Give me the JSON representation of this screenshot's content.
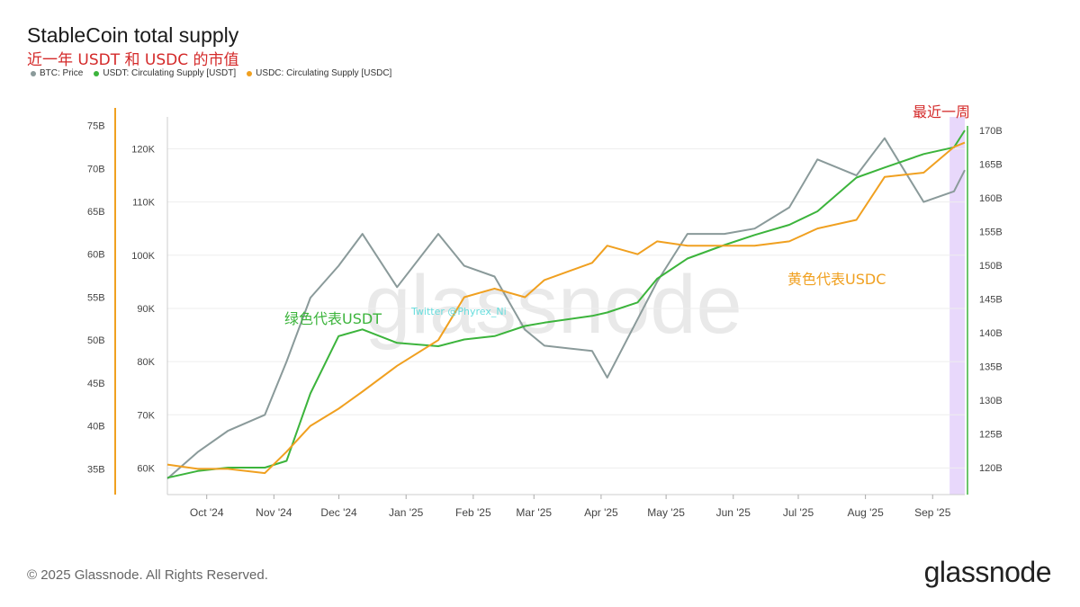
{
  "header": {
    "title": "StableCoin total supply",
    "subtitle": "近一年 USDT 和 USDC 的市值"
  },
  "footer": {
    "copyright": "© 2025 Glassnode. All Rights Reserved.",
    "brand": "glassnode"
  },
  "watermark": {
    "brand": "glassnode",
    "twitter": "Twitter @Phyrex_Ni"
  },
  "colors": {
    "btc": "#8a9a9a",
    "usdt": "#3cb43c",
    "usdc": "#f0a020",
    "highlight": "#e8d8fb",
    "red": "#d42a2a"
  },
  "annotations": {
    "recent_week": "最近一周",
    "usdt_label": "绿色代表USDT",
    "usdc_label": "黄色代表USDC"
  },
  "chart_data": {
    "type": "line",
    "title": "StableCoin total supply",
    "x": [
      "2024-09-17",
      "2024-10-01",
      "2024-10-15",
      "2024-11-01",
      "2024-11-11",
      "2024-11-22",
      "2024-12-05",
      "2024-12-16",
      "2025-01-01",
      "2025-01-20",
      "2025-02-01",
      "2025-02-15",
      "2025-03-01",
      "2025-03-10",
      "2025-04-01",
      "2025-04-08",
      "2025-04-22",
      "2025-05-01",
      "2025-05-15",
      "2025-06-01",
      "2025-06-15",
      "2025-07-01",
      "2025-07-14",
      "2025-08-01",
      "2025-08-14",
      "2025-09-01",
      "2025-09-15",
      "2025-09-20"
    ],
    "x_ticks": [
      "Oct '24",
      "Nov '24",
      "Dec '24",
      "Jan '25",
      "Feb '25",
      "Mar '25",
      "Apr '25",
      "May '25",
      "Jun '25",
      "Jul '25",
      "Aug '25",
      "Sep '25"
    ],
    "axes": {
      "btc": {
        "side": "left-inner",
        "ticks": [
          "60K",
          "70K",
          "80K",
          "90K",
          "100K",
          "110K",
          "120K"
        ],
        "range": [
          55000,
          126000
        ]
      },
      "usdc": {
        "side": "left-outer",
        "ticks": [
          "35B",
          "40B",
          "45B",
          "50B",
          "55B",
          "60B",
          "65B",
          "70B",
          "75B"
        ],
        "range": [
          32,
          76
        ]
      },
      "usdt": {
        "side": "right",
        "ticks": [
          "120B",
          "125B",
          "130B",
          "135B",
          "140B",
          "145B",
          "150B",
          "155B",
          "160B",
          "165B",
          "170B"
        ],
        "range": [
          116,
          172
        ]
      }
    },
    "series": [
      {
        "name": "BTC: Price",
        "axis": "btc",
        "color": "#8a9a9a",
        "values": [
          58000,
          63000,
          67000,
          70000,
          80000,
          92000,
          98000,
          104000,
          94000,
          104000,
          98000,
          96000,
          86000,
          83000,
          82000,
          77000,
          88000,
          95000,
          104000,
          104000,
          105000,
          109000,
          118000,
          115000,
          122000,
          110000,
          112000,
          116000
        ]
      },
      {
        "name": "USDT: Circulating Supply [USDT]",
        "axis": "usdt",
        "color": "#3cb43c",
        "values": [
          118.5,
          119.5,
          120,
          120,
          121,
          131,
          139.5,
          140.5,
          138.5,
          138,
          139,
          139.5,
          141,
          141.5,
          142.5,
          143,
          144.5,
          148,
          151,
          153,
          154.5,
          156,
          158,
          163,
          164.5,
          166.5,
          167.5,
          170
        ]
      },
      {
        "name": "USDC: Circulating Supply [USDC]",
        "axis": "usdc",
        "color": "#f0a020",
        "values": [
          35.5,
          35,
          35,
          34.5,
          37,
          40,
          42,
          44,
          47,
          50,
          55,
          56,
          55,
          57,
          59,
          61,
          60,
          61.5,
          61,
          61,
          61,
          61.5,
          63,
          64,
          69,
          69.5,
          72.5,
          73
        ]
      }
    ],
    "highlight_region": {
      "label": "最近一周",
      "from": "2025-09-13",
      "to": "2025-09-20"
    },
    "grid": true,
    "legend_position": "top-left"
  }
}
